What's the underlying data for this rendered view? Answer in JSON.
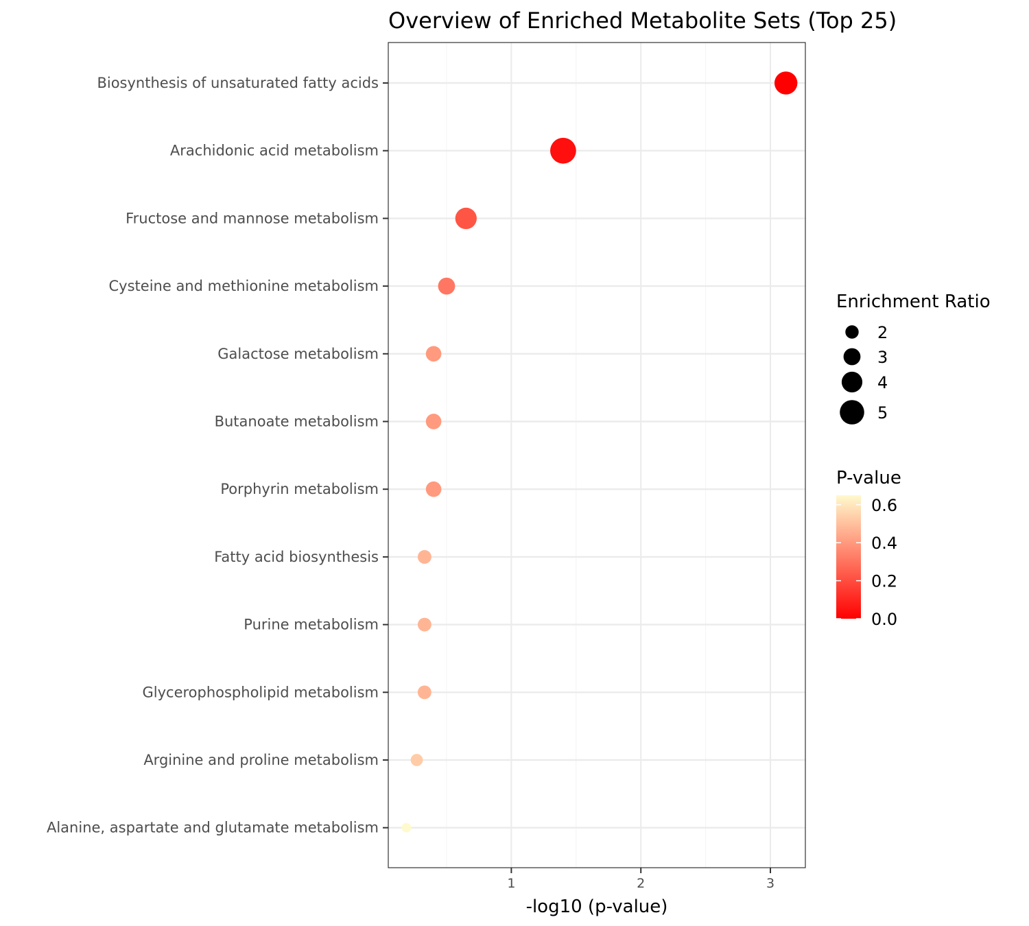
{
  "chart_data": {
    "type": "scatter",
    "title": "Overview of Enriched Metabolite Sets (Top 25)",
    "xlabel": "-log10 (p-value)",
    "ylabel": "",
    "xlim": [
      0.05,
      3.27
    ],
    "x_ticks": [
      1,
      2,
      3
    ],
    "grid": true,
    "legend_position": "right",
    "series": [
      {
        "points": [
          {
            "label": "Biosynthesis of unsaturated fatty acids",
            "x": 3.12,
            "enrichment_ratio": 4.6,
            "p_value": 0.0008
          },
          {
            "label": "Arachidonic acid metabolism",
            "x": 1.4,
            "enrichment_ratio": 5.4,
            "p_value": 0.04
          },
          {
            "label": "Fructose and mannose metabolism",
            "x": 0.65,
            "enrichment_ratio": 4.2,
            "p_value": 0.22
          },
          {
            "label": "Cysteine and methionine metabolism",
            "x": 0.5,
            "enrichment_ratio": 3.0,
            "p_value": 0.31
          },
          {
            "label": "Galactose metabolism",
            "x": 0.4,
            "enrichment_ratio": 2.6,
            "p_value": 0.4
          },
          {
            "label": "Butanoate metabolism",
            "x": 0.4,
            "enrichment_ratio": 2.6,
            "p_value": 0.4
          },
          {
            "label": "Porphyrin metabolism",
            "x": 0.4,
            "enrichment_ratio": 2.6,
            "p_value": 0.4
          },
          {
            "label": "Fatty acid biosynthesis",
            "x": 0.33,
            "enrichment_ratio": 2.1,
            "p_value": 0.47
          },
          {
            "label": "Purine metabolism",
            "x": 0.33,
            "enrichment_ratio": 2.1,
            "p_value": 0.47
          },
          {
            "label": "Glycerophospholipid metabolism",
            "x": 0.33,
            "enrichment_ratio": 2.1,
            "p_value": 0.47
          },
          {
            "label": "Arginine and proline metabolism",
            "x": 0.27,
            "enrichment_ratio": 1.7,
            "p_value": 0.53
          },
          {
            "label": "Alanine, aspartate and glutamate metabolism",
            "x": 0.19,
            "enrichment_ratio": 1.0,
            "p_value": 0.65
          }
        ]
      }
    ],
    "legends": {
      "size": {
        "title": "Enrichment Ratio",
        "values": [
          2,
          3,
          4,
          5
        ]
      },
      "color": {
        "title": "P-value",
        "ticks": [
          0.0,
          0.2,
          0.4,
          0.6
        ],
        "range": [
          0,
          0.65
        ],
        "low_color": "#ff0000",
        "high_color": "#fffacd"
      }
    },
    "colors": {
      "panel_border": "#333333",
      "grid_major": "#ebebeb",
      "grid_minor": "#f5f5f5",
      "tick_text": "#4d4d4d"
    }
  }
}
